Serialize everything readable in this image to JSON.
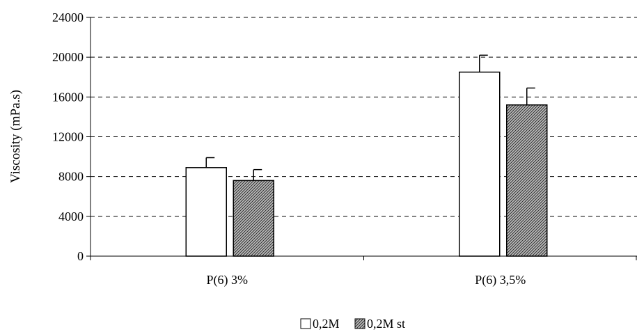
{
  "chart_data": {
    "type": "bar",
    "title": "",
    "xlabel": "",
    "ylabel": "Viscosity (mPa.s)",
    "categories": [
      "P(6) 3%",
      "P(6) 3,5%"
    ],
    "series": [
      {
        "name": "0,2M",
        "values": [
          8900,
          18500
        ],
        "errors": [
          1000,
          1700
        ],
        "fill": "white"
      },
      {
        "name": "0,2M st",
        "values": [
          7600,
          15200
        ],
        "errors": [
          1100,
          1700
        ],
        "fill": "hatched"
      }
    ],
    "ylim": [
      0,
      24000
    ],
    "yticks": [
      0,
      4000,
      8000,
      12000,
      16000,
      20000,
      24000
    ],
    "grid": "horizontal-dashed",
    "legend_position": "bottom-center"
  },
  "colors": {
    "axis": "#000000",
    "grid": "#000000",
    "bar_white": "#ffffff",
    "hatch_fg": "#2b2b2b",
    "hatch_bg": "#bdbdbd"
  }
}
